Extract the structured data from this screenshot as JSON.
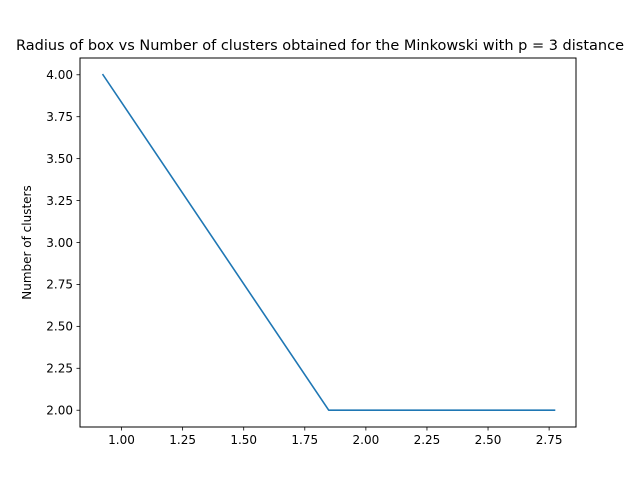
{
  "chart_data": {
    "type": "line",
    "title": "Radius of box vs Number of clusters obtained for the Minkowski with p = 3 distance",
    "xlabel": "",
    "ylabel": "Number of clusters",
    "xlim": [
      0.83,
      2.86
    ],
    "ylim": [
      1.9,
      4.1
    ],
    "xticks": [
      1.0,
      1.25,
      1.5,
      1.75,
      2.0,
      2.25,
      2.5,
      2.75
    ],
    "xtick_labels": [
      "1.00",
      "1.25",
      "1.50",
      "1.75",
      "2.00",
      "2.25",
      "2.50",
      "2.75"
    ],
    "yticks": [
      2.0,
      2.25,
      2.5,
      2.75,
      3.0,
      3.25,
      3.5,
      3.75,
      4.0
    ],
    "ytick_labels": [
      "2.00",
      "2.25",
      "2.50",
      "2.75",
      "3.00",
      "3.25",
      "3.50",
      "3.75",
      "4.00"
    ],
    "grid": false,
    "legend": "none",
    "line_color": "#1f77b4",
    "series": [
      {
        "x": [
          0.924,
          1.848,
          2.772
        ],
        "y": [
          4.0,
          2.0,
          2.0
        ]
      }
    ]
  }
}
